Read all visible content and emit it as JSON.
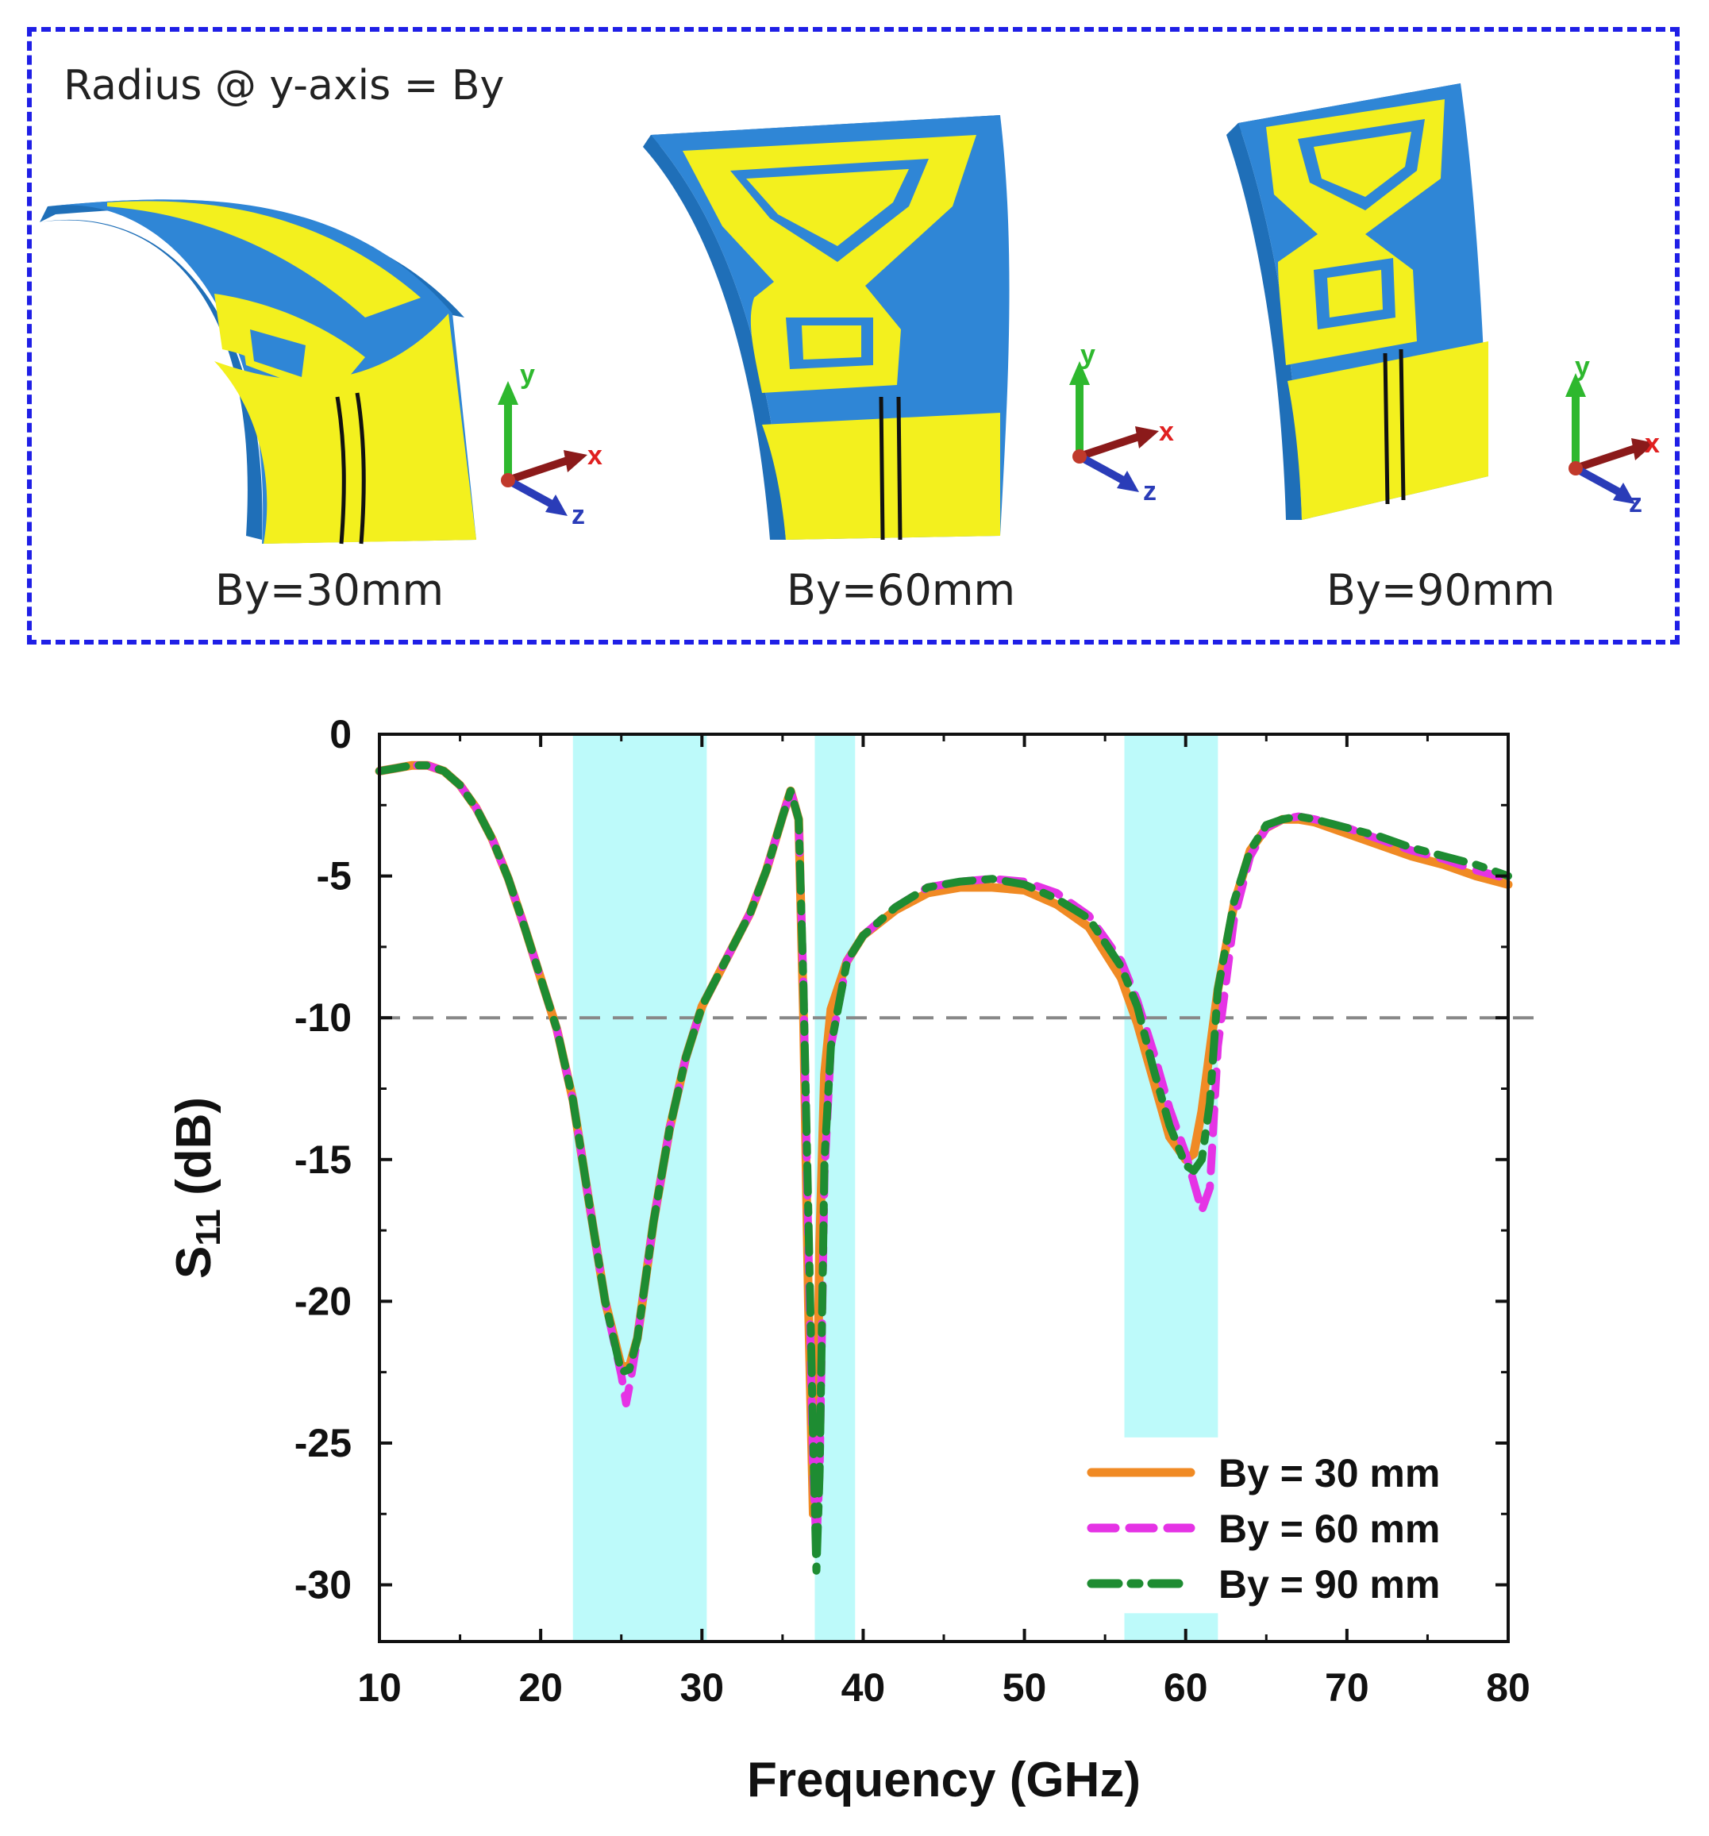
{
  "panel": {
    "heading": "Radius @ y-axis = By",
    "captions": [
      "By=30mm",
      "By=60mm",
      "By=90mm"
    ],
    "axes_labels": {
      "x": "x",
      "y": "y",
      "z": "z"
    },
    "colors": {
      "substrate": "#2f86d6",
      "metal": "#f3f01e",
      "border": "#1f1fe6",
      "y_axis": "#2eb82e",
      "x_axis": "#8b1a1a",
      "z_axis": "#2a3cb8"
    }
  },
  "chart_data": {
    "type": "line",
    "xlabel": "Frequency (GHz)",
    "ylabel_main": "S",
    "ylabel_sub": "11",
    "ylabel_unit": " (dB)",
    "xlim": [
      10,
      80
    ],
    "ylim": [
      -32,
      0
    ],
    "xticks": [
      10,
      20,
      30,
      40,
      50,
      60,
      70,
      80
    ],
    "yticks": [
      0,
      -5,
      -10,
      -15,
      -20,
      -25,
      -30
    ],
    "reference_line": -10,
    "bands": [
      {
        "x0": 22,
        "x1": 30.3,
        "segments": [
          [
            0,
            -32
          ]
        ]
      },
      {
        "x0": 37,
        "x1": 39.5,
        "segments": [
          [
            0,
            -32
          ]
        ]
      },
      {
        "x0": 56.2,
        "x1": 62,
        "segments": [
          [
            0,
            -24.8
          ],
          [
            -31,
            -32
          ]
        ]
      }
    ],
    "band_color": "#bdfafa",
    "legend_position": "bottom-right",
    "series": [
      {
        "name": "By = 30 mm",
        "color": "#f08a24",
        "style": "solid",
        "x": [
          10,
          11,
          12,
          13,
          14,
          15,
          16,
          17,
          18,
          19,
          20,
          21,
          22,
          23,
          24,
          25,
          25.5,
          26,
          27,
          28,
          29,
          30,
          31,
          32,
          33,
          34,
          35,
          35.5,
          36,
          36.3,
          36.6,
          36.9,
          37.1,
          37.3,
          37.6,
          38,
          39,
          40,
          42,
          44,
          46,
          48,
          50,
          52,
          54,
          56,
          57,
          58,
          59,
          60,
          60.5,
          61,
          62,
          63,
          64,
          65,
          66,
          67,
          68,
          70,
          72,
          74,
          76,
          78,
          80
        ],
        "y": [
          -1.3,
          -1.2,
          -1.1,
          -1.1,
          -1.3,
          -1.8,
          -2.6,
          -3.7,
          -5.1,
          -6.8,
          -8.6,
          -10.4,
          -12.9,
          -16.5,
          -20.0,
          -22.3,
          -22.3,
          -21.3,
          -17.2,
          -13.9,
          -11.4,
          -9.6,
          -8.5,
          -7.4,
          -6.3,
          -4.8,
          -2.9,
          -2.0,
          -3.0,
          -10.0,
          -20.0,
          -27.5,
          -26.0,
          -18.0,
          -12.0,
          -9.7,
          -8.0,
          -7.1,
          -6.2,
          -5.6,
          -5.4,
          -5.4,
          -5.5,
          -6.0,
          -6.8,
          -8.6,
          -10.2,
          -12.2,
          -14.2,
          -15.0,
          -14.8,
          -13.3,
          -9.0,
          -6.0,
          -4.1,
          -3.3,
          -3.0,
          -3.0,
          -3.1,
          -3.5,
          -3.9,
          -4.3,
          -4.6,
          -5.0,
          -5.3
        ]
      },
      {
        "name": "By = 60 mm",
        "color": "#e533e5",
        "style": "dash",
        "x": [
          10,
          11,
          12,
          13,
          14,
          15,
          16,
          17,
          18,
          19,
          20,
          21,
          22,
          23,
          24,
          25,
          25.3,
          25.6,
          26,
          27,
          28,
          29,
          30,
          31,
          32,
          33,
          34,
          35,
          35.5,
          36,
          36.3,
          36.6,
          36.9,
          37.1,
          37.3,
          37.6,
          38,
          39,
          40,
          42,
          44,
          46,
          48,
          50,
          52,
          54,
          56,
          57,
          58,
          59,
          60,
          60.5,
          61,
          61.5,
          62,
          63,
          64,
          65,
          66,
          67,
          68,
          70,
          72,
          74,
          76,
          78,
          80
        ],
        "y": [
          -1.3,
          -1.2,
          -1.1,
          -1.1,
          -1.3,
          -1.8,
          -2.6,
          -3.7,
          -5.1,
          -6.8,
          -8.6,
          -10.4,
          -12.9,
          -16.5,
          -20.0,
          -22.6,
          -23.6,
          -22.7,
          -21.3,
          -17.2,
          -13.9,
          -11.4,
          -9.6,
          -8.5,
          -7.4,
          -6.3,
          -4.8,
          -2.9,
          -2.0,
          -3.0,
          -9.0,
          -18.0,
          -26.0,
          -28.6,
          -26.0,
          -15.5,
          -11.0,
          -8.0,
          -7.1,
          -6.1,
          -5.4,
          -5.2,
          -5.1,
          -5.2,
          -5.6,
          -6.4,
          -8.0,
          -9.4,
          -11.2,
          -13.2,
          -14.8,
          -15.8,
          -16.8,
          -16.0,
          -11.0,
          -6.5,
          -4.3,
          -3.3,
          -3.0,
          -2.9,
          -3.0,
          -3.3,
          -3.7,
          -4.1,
          -4.4,
          -4.8,
          -5.1
        ]
      },
      {
        "name": "By = 90 mm",
        "color": "#1e8c32",
        "style": "dash-dot",
        "x": [
          10,
          11,
          12,
          13,
          14,
          15,
          16,
          17,
          18,
          19,
          20,
          21,
          22,
          23,
          24,
          25,
          25.5,
          26,
          27,
          28,
          29,
          30,
          31,
          32,
          33,
          34,
          35,
          35.5,
          36,
          36.3,
          36.6,
          36.9,
          37.1,
          37.3,
          37.6,
          38,
          39,
          40,
          42,
          44,
          46,
          48,
          50,
          52,
          54,
          56,
          57,
          58,
          59,
          60,
          60.5,
          61,
          61.5,
          62,
          63,
          64,
          65,
          66,
          67,
          68,
          70,
          72,
          74,
          76,
          78,
          80
        ],
        "y": [
          -1.3,
          -1.2,
          -1.1,
          -1.1,
          -1.3,
          -1.8,
          -2.6,
          -3.7,
          -5.1,
          -6.8,
          -8.6,
          -10.4,
          -12.9,
          -16.5,
          -20.0,
          -22.5,
          -22.4,
          -21.3,
          -17.2,
          -13.9,
          -11.4,
          -9.6,
          -8.5,
          -7.4,
          -6.3,
          -4.8,
          -2.9,
          -2.0,
          -3.0,
          -9.0,
          -17.0,
          -25.0,
          -29.5,
          -26.0,
          -15.0,
          -11.0,
          -8.0,
          -7.1,
          -6.1,
          -5.4,
          -5.2,
          -5.1,
          -5.3,
          -5.8,
          -6.5,
          -8.2,
          -9.6,
          -11.8,
          -13.8,
          -15.2,
          -15.4,
          -15.0,
          -13.0,
          -9.0,
          -5.9,
          -4.1,
          -3.2,
          -3.0,
          -2.9,
          -3.0,
          -3.3,
          -3.6,
          -4.0,
          -4.3,
          -4.6,
          -5.0
        ]
      }
    ]
  }
}
